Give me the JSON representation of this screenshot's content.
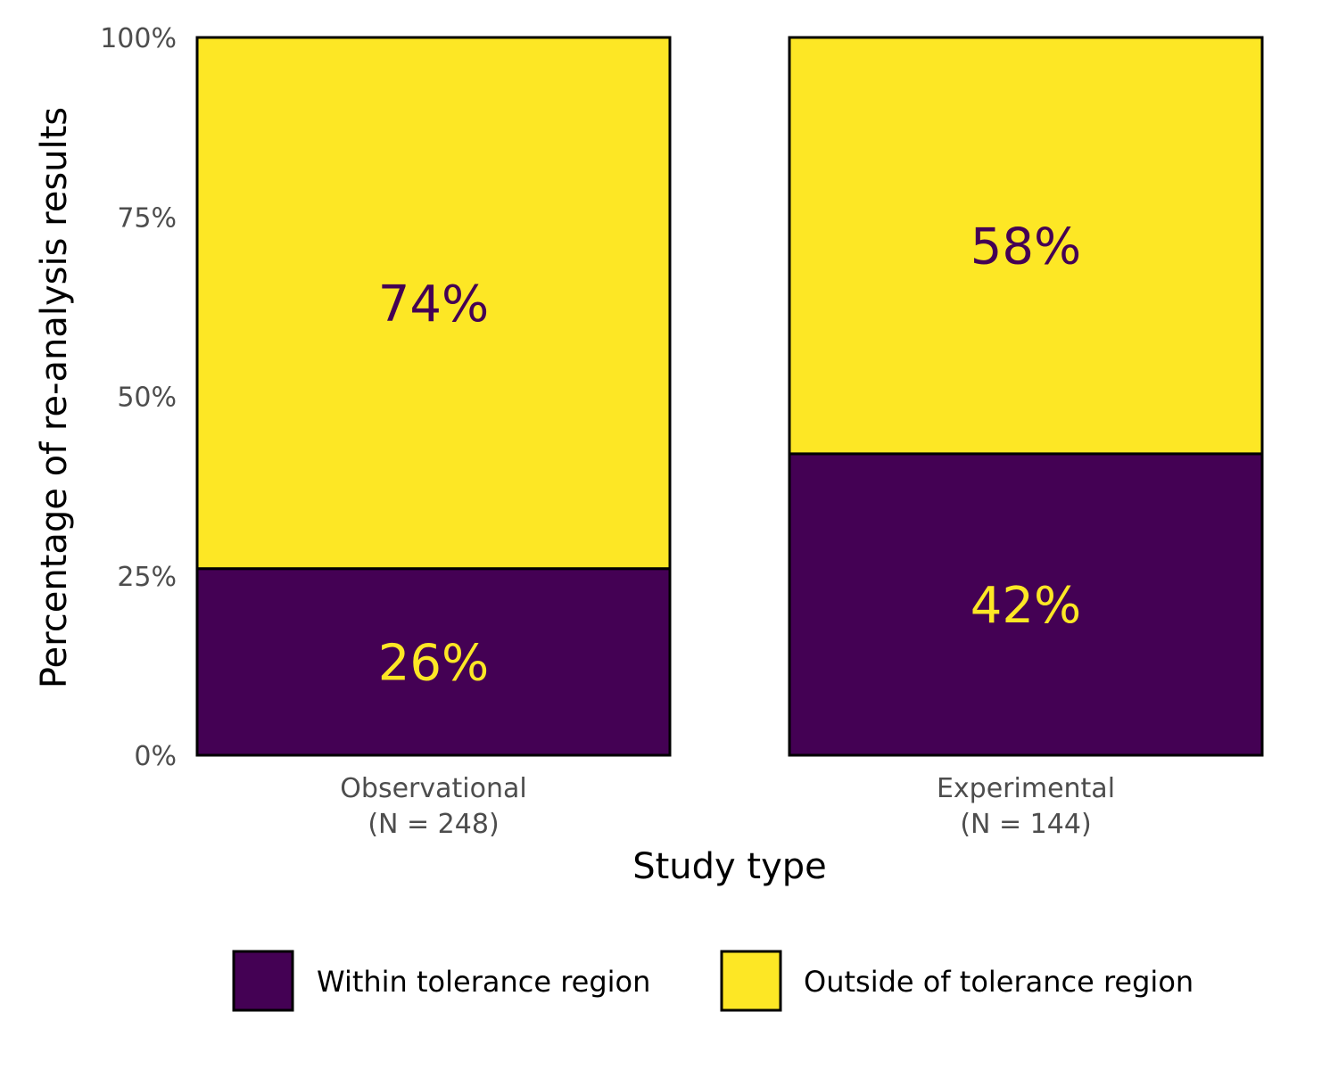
{
  "chart_data": {
    "type": "bar",
    "stacked": true,
    "categories": [
      "Observational",
      "Experimental"
    ],
    "category_lines": [
      [
        "Observational",
        "(N = 248)"
      ],
      [
        "Experimental",
        "(N = 144)"
      ]
    ],
    "series": [
      {
        "name": "Within tolerance region",
        "values": [
          26,
          42
        ],
        "labels": [
          "26%",
          "42%"
        ],
        "color": "#440154",
        "label_color": "#FDE725"
      },
      {
        "name": "Outside of tolerance region",
        "values": [
          74,
          58
        ],
        "labels": [
          "74%",
          "58%"
        ],
        "color": "#FDE725",
        "label_color": "#440154"
      }
    ],
    "xlabel": "Study type",
    "ylabel": "Percentage of re-analysis results",
    "ylim": [
      0,
      100
    ],
    "yticks": [
      0,
      25,
      50,
      75,
      100
    ],
    "ytick_labels": [
      "0%",
      "25%",
      "50%",
      "75%",
      "100%"
    ],
    "grid": false,
    "legend_position": "bottom"
  }
}
